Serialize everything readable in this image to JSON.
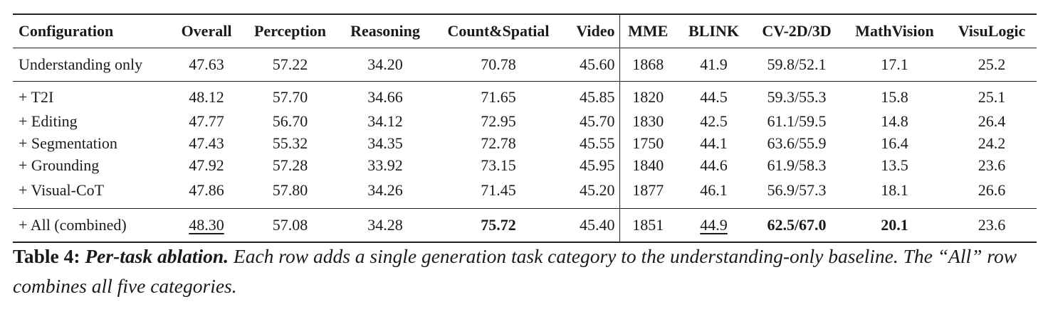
{
  "table": {
    "header": [
      "Configuration",
      "Overall",
      "Perception",
      "Reasoning",
      "Count&Spatial",
      "Video",
      "MME",
      "BLINK",
      "CV-2D/3D",
      "MathVision",
      "VisuLogic"
    ],
    "rows": [
      [
        "Understanding only",
        "47.63",
        "57.22",
        "34.20",
        "70.78",
        "45.60",
        "1868",
        "41.9",
        "59.8/52.1",
        "17.1",
        "25.2"
      ],
      [
        "+ T2I",
        "48.12",
        "57.70",
        "34.66",
        "71.65",
        "45.85",
        "1820",
        "44.5",
        "59.3/55.3",
        "15.8",
        "25.1"
      ],
      [
        "+ Editing",
        "47.77",
        "56.70",
        "34.12",
        "72.95",
        "45.70",
        "1830",
        "42.5",
        "61.1/59.5",
        "14.8",
        "26.4"
      ],
      [
        "+ Segmentation",
        "47.43",
        "55.32",
        "34.35",
        "72.78",
        "45.55",
        "1750",
        "44.1",
        "63.6/55.9",
        "16.4",
        "24.2"
      ],
      [
        "+ Grounding",
        "47.92",
        "57.28",
        "33.92",
        "73.15",
        "45.95",
        "1840",
        "44.6",
        "61.9/58.3",
        "13.5",
        "23.6"
      ],
      [
        "+ Visual-CoT",
        "47.86",
        "57.80",
        "34.26",
        "71.45",
        "45.20",
        "1877",
        "46.1",
        "56.9/57.3",
        "18.1",
        "26.6"
      ],
      [
        "+ All (combined)",
        "48.30",
        "57.08",
        "34.28",
        "75.72",
        "45.40",
        "1851",
        "44.9",
        "62.5/67.0",
        "20.1",
        "23.6"
      ]
    ]
  },
  "caption": {
    "label": "Table 4:",
    "title": "Per-task ablation.",
    "text": "Each row adds a single generation task category to the understanding-only baseline. The “All” row combines all five categories."
  }
}
